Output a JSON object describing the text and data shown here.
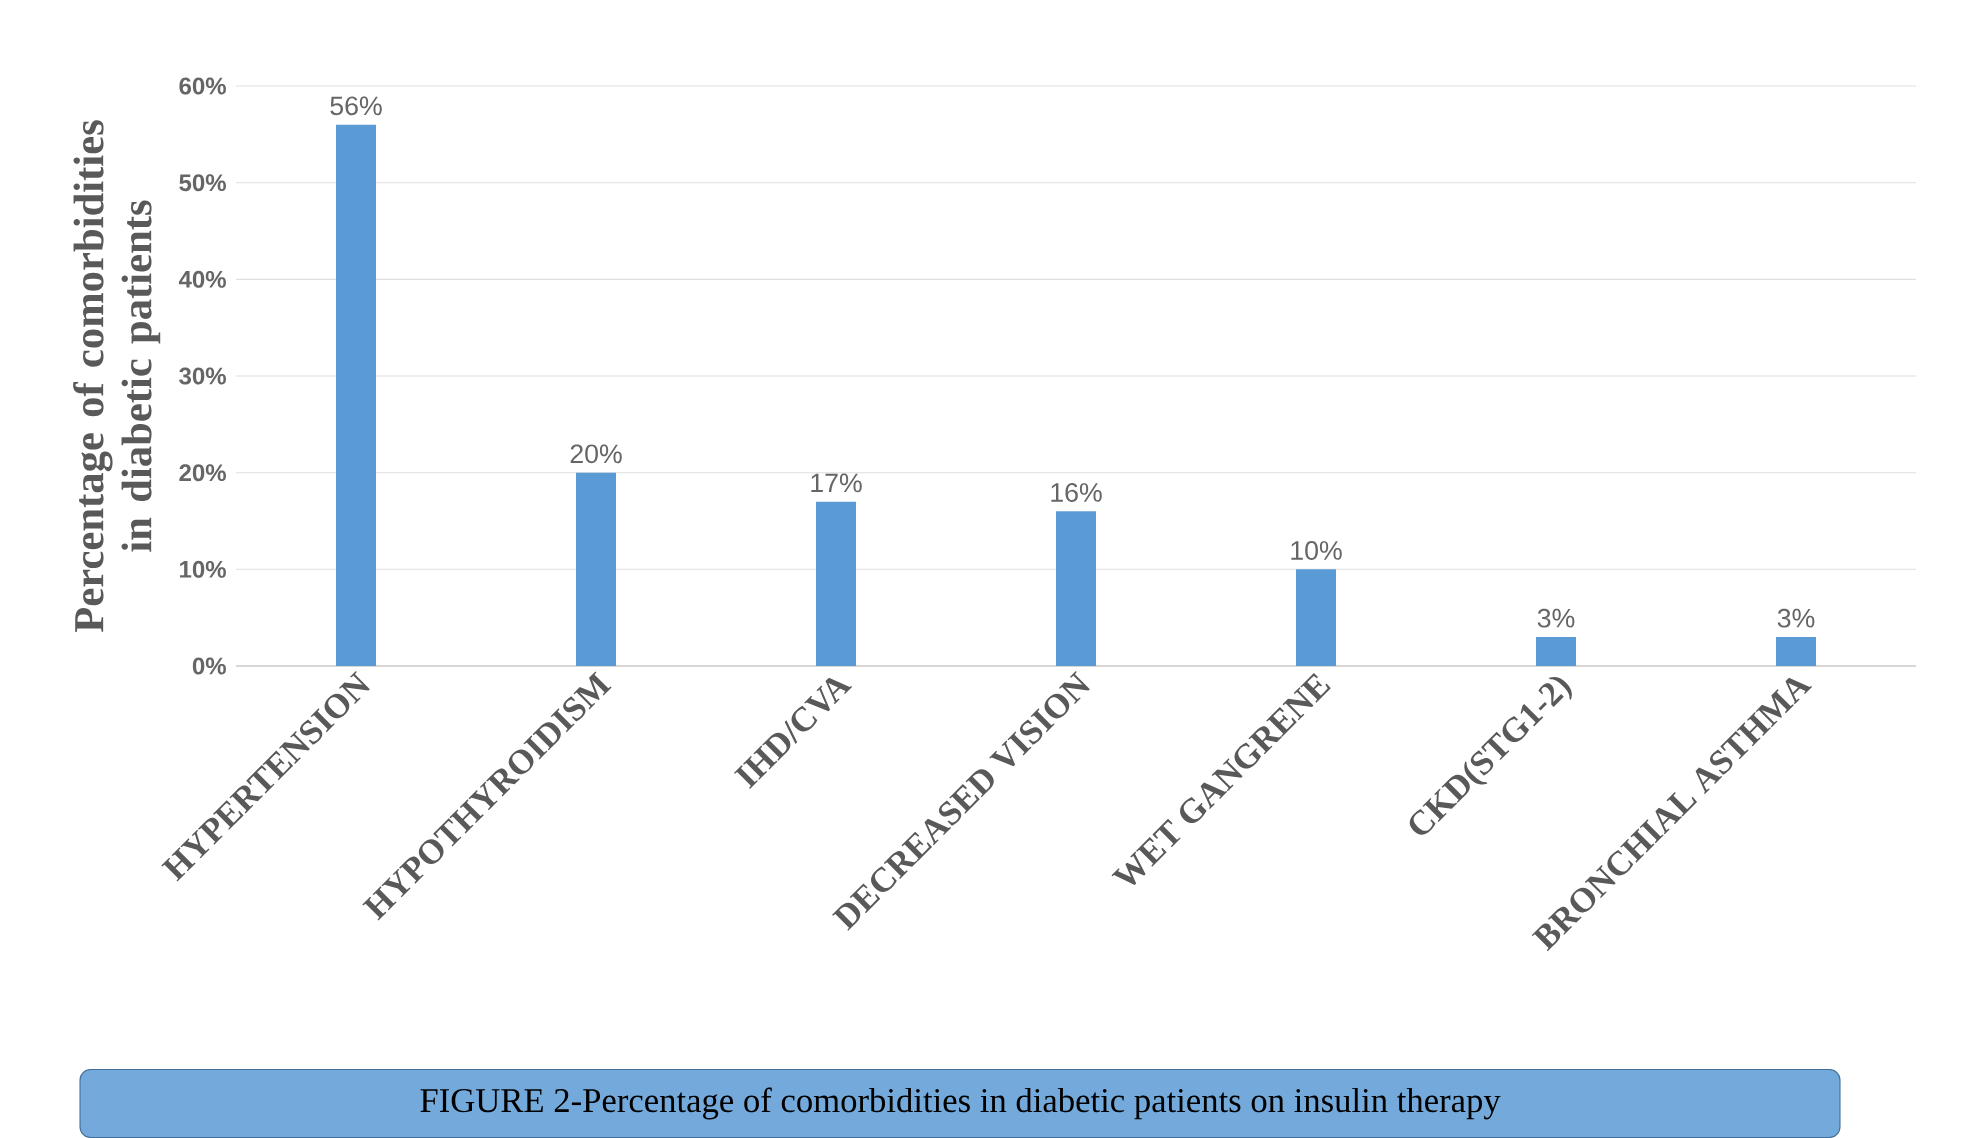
{
  "chart_data": {
    "type": "bar",
    "ylabel": "Percentage of comorbidities in diabetic patients",
    "categories": [
      "HYPERTENSION",
      "HYPOTHYROIDISM",
      "IHD/CVA",
      "DECREASED VISION",
      "WET GANGRENE",
      "CKD(STG1-2)",
      "BRONCHIAL ASTHMA"
    ],
    "values": [
      56,
      20,
      17,
      16,
      10,
      3,
      3
    ],
    "value_labels": [
      "56%",
      "20%",
      "17%",
      "16%",
      "10%",
      "3%",
      "3%"
    ],
    "color": "#5b9bd5",
    "ylim": [
      0,
      60
    ],
    "yticks": [
      {
        "value": 0,
        "label": "0%"
      },
      {
        "value": 10,
        "label": "10%"
      },
      {
        "value": 20,
        "label": "20%"
      },
      {
        "value": 30,
        "label": "30%"
      },
      {
        "value": 40,
        "label": "40%"
      },
      {
        "value": 50,
        "label": "50%"
      },
      {
        "value": 60,
        "label": "60%"
      }
    ],
    "grid": "y",
    "annotations": [
      "FIGURE 2-Percentage of comorbidities in diabetic patients on insulin therapy"
    ]
  }
}
